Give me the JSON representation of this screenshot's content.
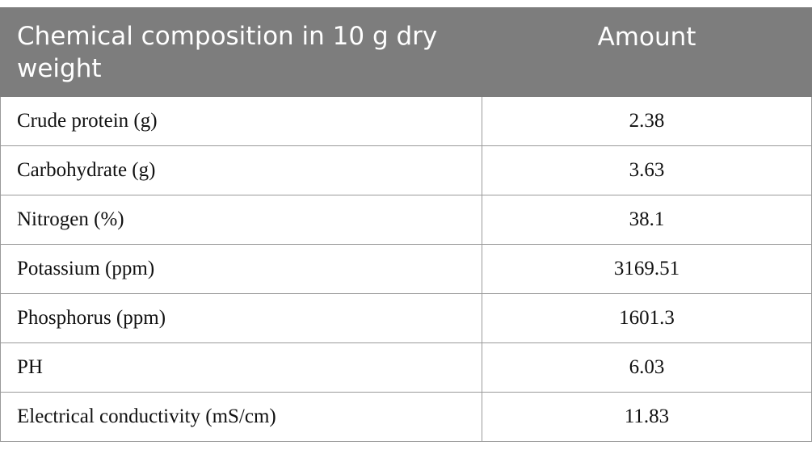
{
  "table": {
    "headers": [
      "Chemical composition in 10 g dry weight",
      "Amount"
    ],
    "rows": [
      {
        "name": "Crude protein (g)",
        "value": "2.38"
      },
      {
        "name": "Carbohydrate (g)",
        "value": "3.63"
      },
      {
        "name": "Nitrogen (%)",
        "value": "38.1"
      },
      {
        "name": "Potassium (ppm)",
        "value": "3169.51"
      },
      {
        "name": "Phosphorus (ppm)",
        "value": "1601.3"
      },
      {
        "name": "PH",
        "value": "6.03"
      },
      {
        "name": "Electrical conductivity (mS/cm)",
        "value": "11.83"
      }
    ]
  },
  "colors": {
    "header_bg": "#7d7d7d",
    "header_text": "#ffffff",
    "border": "#9a9a9a"
  }
}
